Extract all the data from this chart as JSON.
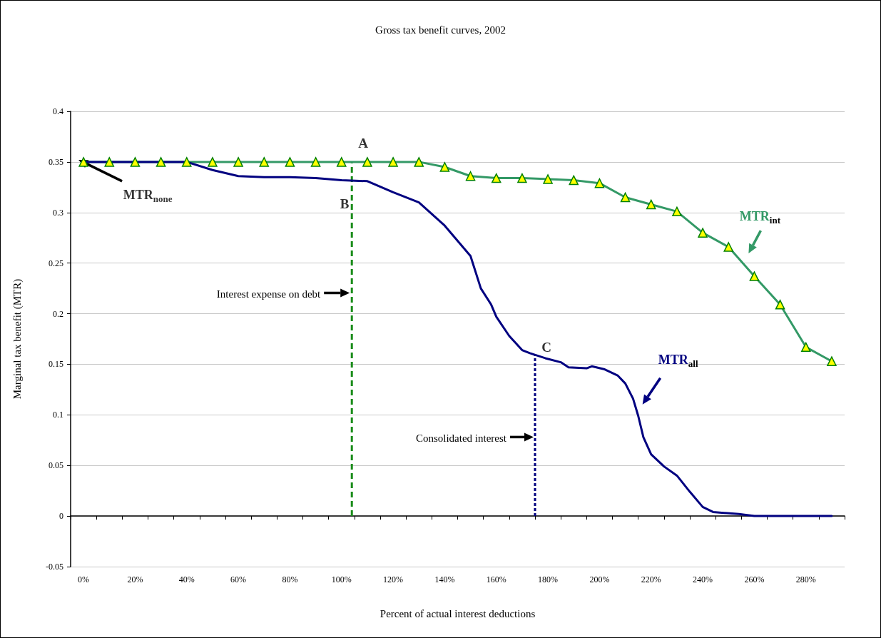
{
  "chart_data": {
    "type": "line",
    "title": "Gross tax benefit curves, 2002",
    "xlabel": "Percent of actual interest deductions",
    "ylabel": "Marginal tax benefit (MTR)",
    "xlim": [
      -5,
      295
    ],
    "xticks": [
      {
        "value": -5,
        "label": null
      },
      {
        "value": 0,
        "label": "0%"
      },
      {
        "value": 5,
        "label": null
      },
      {
        "value": 15,
        "label": null
      },
      {
        "value": 20,
        "label": "20%"
      },
      {
        "value": 25,
        "label": null
      },
      {
        "value": 35,
        "label": null
      },
      {
        "value": 40,
        "label": "40%"
      },
      {
        "value": 45,
        "label": null
      },
      {
        "value": 55,
        "label": null
      },
      {
        "value": 60,
        "label": "60%"
      },
      {
        "value": 65,
        "label": null
      },
      {
        "value": 75,
        "label": null
      },
      {
        "value": 80,
        "label": "80%"
      },
      {
        "value": 85,
        "label": null
      },
      {
        "value": 95,
        "label": null
      },
      {
        "value": 100,
        "label": "100%"
      },
      {
        "value": 105,
        "label": null
      },
      {
        "value": 115,
        "label": null
      },
      {
        "value": 120,
        "label": "120%"
      },
      {
        "value": 125,
        "label": null
      },
      {
        "value": 135,
        "label": null
      },
      {
        "value": 140,
        "label": "140%"
      },
      {
        "value": 145,
        "label": null
      },
      {
        "value": 155,
        "label": null
      },
      {
        "value": 160,
        "label": "160%"
      },
      {
        "value": 165,
        "label": null
      },
      {
        "value": 175,
        "label": null
      },
      {
        "value": 180,
        "label": "180%"
      },
      {
        "value": 185,
        "label": null
      },
      {
        "value": 195,
        "label": null
      },
      {
        "value": 200,
        "label": "200%"
      },
      {
        "value": 205,
        "label": null
      },
      {
        "value": 215,
        "label": null
      },
      {
        "value": 220,
        "label": "220%"
      },
      {
        "value": 225,
        "label": null
      },
      {
        "value": 235,
        "label": null
      },
      {
        "value": 240,
        "label": "240%"
      },
      {
        "value": 245,
        "label": null
      },
      {
        "value": 255,
        "label": null
      },
      {
        "value": 260,
        "label": "260%"
      },
      {
        "value": 265,
        "label": null
      },
      {
        "value": 275,
        "label": null
      },
      {
        "value": 280,
        "label": "280%"
      },
      {
        "value": 285,
        "label": null
      },
      {
        "value": 295,
        "label": null
      }
    ],
    "ylim": [
      -0.05,
      0.4
    ],
    "yticks": [
      -0.05,
      0,
      0.05,
      0.1,
      0.15,
      0.2,
      0.25,
      0.3,
      0.35,
      0.4
    ],
    "grid": "y",
    "line_style": "solid",
    "series": [
      {
        "name": "MTR$_{int}$",
        "color": "#339966",
        "marker": "triangle",
        "x": [
          0,
          10,
          20,
          30,
          40,
          50,
          60,
          70,
          80,
          90,
          100,
          110,
          120,
          130,
          140,
          150,
          160,
          170,
          180,
          190,
          200,
          210,
          220,
          230,
          240,
          250,
          260,
          270,
          280,
          290
        ],
        "values": [
          0.35,
          0.35,
          0.35,
          0.35,
          0.35,
          0.35,
          0.35,
          0.35,
          0.35,
          0.35,
          0.35,
          0.35,
          0.35,
          0.35,
          0.345,
          0.336,
          0.334,
          0.334,
          0.333,
          0.332,
          0.329,
          0.315,
          0.308,
          0.301,
          0.28,
          0.266,
          0.237,
          0.209,
          0.167,
          0.153
        ]
      },
      {
        "name": "MTR$_{all}$",
        "color": "#000080",
        "marker": "none",
        "x": [
          0,
          10,
          20,
          30,
          40,
          50,
          60,
          70,
          80,
          90,
          100,
          110,
          120,
          130,
          140,
          150,
          154,
          158,
          160,
          165,
          170,
          173,
          179,
          185,
          188,
          195,
          197,
          202,
          207,
          210,
          213,
          215,
          217,
          220,
          225,
          230,
          235,
          240,
          244,
          254,
          260,
          270,
          280,
          290
        ],
        "values": [
          0.35,
          0.35,
          0.35,
          0.35,
          0.35,
          0.342,
          0.336,
          0.335,
          0.335,
          0.334,
          0.332,
          0.331,
          0.32,
          0.31,
          0.287,
          0.257,
          0.225,
          0.209,
          0.197,
          0.178,
          0.164,
          0.161,
          0.156,
          0.152,
          0.147,
          0.146,
          0.148,
          0.145,
          0.139,
          0.131,
          0.116,
          0.099,
          0.078,
          0.061,
          0.049,
          0.04,
          0.024,
          0.009,
          0.004,
          0.002,
          0,
          0,
          0,
          0
        ]
      }
    ],
    "ref_lines": [
      {
        "axis": "x",
        "value": 104,
        "label": "Interest expense on debt",
        "color": "#1a8c1a",
        "line_style": "dashed"
      },
      {
        "axis": "x",
        "value": 175,
        "label": "Consolidated interest",
        "color": "#000080",
        "line_style": "dotted"
      }
    ],
    "annotations": [
      {
        "text": "A",
        "x": 104,
        "y": 0.35
      },
      {
        "text": "B",
        "x": 104,
        "y": 0.332
      },
      {
        "text": "C",
        "x": 175,
        "y": 0.159
      },
      {
        "text": "MTR$_{none}$",
        "x": 0,
        "y": 0.35
      }
    ]
  }
}
